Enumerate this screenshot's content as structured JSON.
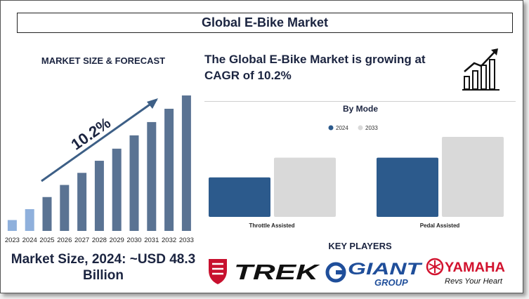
{
  "title": "Global E-Bike Market",
  "left_subtitle": "MARKET SIZE & FORECAST",
  "headline": "The Global E-Bike Market is growing at CAGR of 10.2%",
  "cagr_label": "10.2%",
  "market_size_text": "Market Size, 2024: ~USD 48.3 Billion",
  "key_players_label": "KEY PLAYERS",
  "key_players": [
    "TREK",
    "GIANT",
    "YAMAHA"
  ],
  "logo_texts": {
    "giant_sub": "GROUP",
    "yamaha_tagline": "Revs Your Heart"
  },
  "icons": [
    "growth-chart-icon",
    "trend-arrow-icon"
  ],
  "colors": {
    "navy": "#1b2440",
    "bar_forecast": "#5a7393",
    "bar_highlight": "#8fb0dc",
    "series_2024": "#2c5a8c",
    "series_2033": "#d9d9d9",
    "trek_red": "#c8102e",
    "giant_blue": "#1f4e9a",
    "yamaha_red": "#d2122e"
  },
  "chart_data": [
    {
      "type": "bar",
      "categories": [
        "2023",
        "2024",
        "2025",
        "2026",
        "2027",
        "2028",
        "2029",
        "2030",
        "2031",
        "2032",
        "2033"
      ],
      "values": [
        9,
        18,
        28,
        38,
        48,
        58,
        68,
        79,
        90,
        101,
        112
      ],
      "highlight": [
        "2023",
        "2024"
      ],
      "annotation": "10.2%",
      "title": "",
      "xlabel": "",
      "ylabel": "",
      "ylim": [
        0,
        112
      ],
      "grid": false
    },
    {
      "type": "bar",
      "title": "By Mode",
      "categories": [
        "Throttle Assisted",
        "Pedal Assisted"
      ],
      "series": [
        {
          "name": "2024",
          "values": [
            36,
            54
          ]
        },
        {
          "name": "2033",
          "values": [
            54,
            73
          ]
        }
      ],
      "xlabel": "",
      "ylabel": "",
      "ylim": [
        0,
        73
      ],
      "legend": "top-center",
      "grid": false
    }
  ]
}
